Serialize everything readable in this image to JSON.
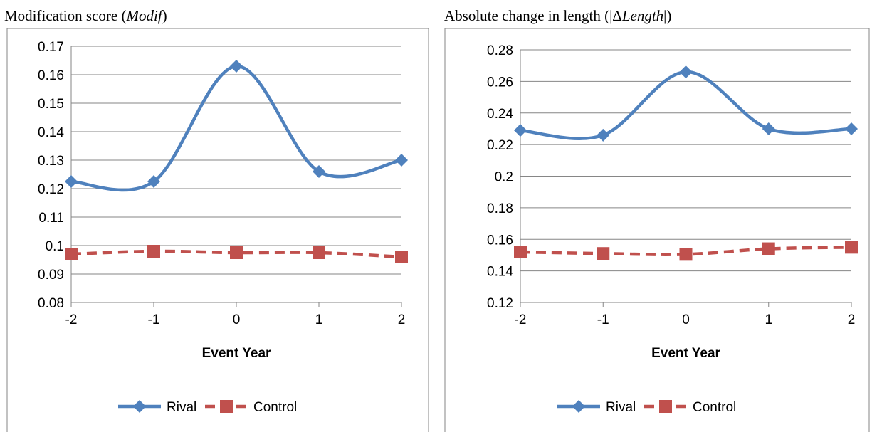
{
  "chart_data": [
    {
      "type": "line",
      "title_prefix": "Modification score (",
      "title_italic": "Modif",
      "title_suffix": ")",
      "xlabel": "Event Year",
      "ylabel": "",
      "x": [
        "-2",
        "-1",
        "0",
        "1",
        "2"
      ],
      "ylim": [
        0.08,
        0.17
      ],
      "yticks": [
        "0.08",
        "0.09",
        "0.1",
        "0.11",
        "0.12",
        "0.13",
        "0.14",
        "0.15",
        "0.16",
        "0.17"
      ],
      "grid": true,
      "legend": "bottom",
      "series": [
        {
          "name": "Rival",
          "values": [
            0.1225,
            0.1225,
            0.163,
            0.126,
            0.13
          ],
          "color": "#4F81BD",
          "marker": "diamond",
          "line": "solid"
        },
        {
          "name": "Control",
          "values": [
            0.097,
            0.098,
            0.0975,
            0.0975,
            0.096
          ],
          "color": "#C0504D",
          "marker": "square",
          "line": "dashed"
        }
      ]
    },
    {
      "type": "line",
      "title_prefix": "Absolute change in length (|Δ",
      "title_italic": "Length",
      "title_suffix": "|)",
      "xlabel": "Event Year",
      "ylabel": "",
      "x": [
        "-2",
        "-1",
        "0",
        "1",
        "2"
      ],
      "ylim": [
        0.12,
        0.28
      ],
      "yticks": [
        "0.12",
        "0.14",
        "0.16",
        "0.18",
        "0.2",
        "0.22",
        "0.24",
        "0.26",
        "0.28"
      ],
      "grid": true,
      "legend": "bottom",
      "series": [
        {
          "name": "Rival",
          "values": [
            0.229,
            0.226,
            0.266,
            0.23,
            0.23
          ],
          "color": "#4F81BD",
          "marker": "diamond",
          "line": "solid"
        },
        {
          "name": "Control",
          "values": [
            0.152,
            0.151,
            0.1505,
            0.154,
            0.155
          ],
          "color": "#C0504D",
          "marker": "square",
          "line": "dashed"
        }
      ]
    }
  ]
}
